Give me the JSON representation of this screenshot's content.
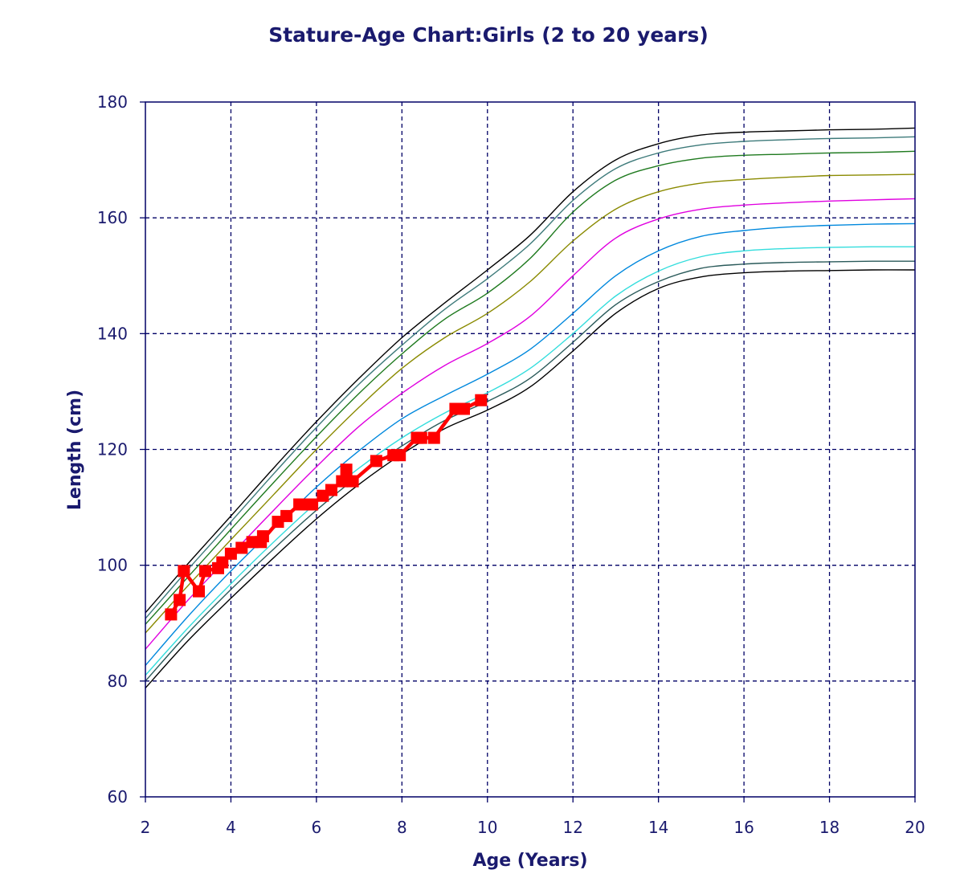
{
  "chart_data": {
    "type": "line",
    "title": "Stature-Age Chart:Girls (2 to 20 years)",
    "xlabel": "Age (Years)",
    "ylabel": "Length (cm)",
    "xlim": [
      2,
      20
    ],
    "ylim": [
      60,
      180
    ],
    "xticks": [
      "2",
      "4",
      "6",
      "8",
      "10",
      "12",
      "14",
      "16",
      "18",
      "20"
    ],
    "yticks": [
      "60",
      "80",
      "100",
      "120",
      "140",
      "160",
      "180"
    ],
    "grid": true,
    "x": [
      2,
      3,
      4,
      5,
      6,
      7,
      8,
      9,
      10,
      11,
      12,
      13,
      14,
      15,
      16,
      17,
      18,
      19,
      20
    ],
    "series": [
      {
        "color": "#000000",
        "values": [
          91.8,
          100.3,
          108.5,
          116.8,
          124.8,
          132.3,
          139.3,
          145.3,
          151.0,
          157.0,
          164.5,
          170.0,
          172.8,
          174.3,
          174.8,
          175.0,
          175.2,
          175.3,
          175.5
        ]
      },
      {
        "color": "#3d7a7a",
        "values": [
          90.8,
          99.3,
          107.5,
          115.8,
          123.8,
          131.3,
          138.0,
          144.2,
          149.5,
          155.5,
          163.0,
          168.5,
          171.2,
          172.6,
          173.2,
          173.5,
          173.7,
          173.8,
          174.0
        ]
      },
      {
        "color": "#1f7a1f",
        "values": [
          89.8,
          98.0,
          106.2,
          114.3,
          122.2,
          129.7,
          136.5,
          142.5,
          147.0,
          153.0,
          161.0,
          166.5,
          169.0,
          170.3,
          170.8,
          171.0,
          171.2,
          171.3,
          171.5
        ]
      },
      {
        "color": "#8a8a00",
        "values": [
          88.3,
          96.5,
          104.4,
          112.2,
          120.0,
          127.3,
          134.0,
          139.3,
          143.5,
          149.0,
          156.0,
          161.5,
          164.5,
          166.0,
          166.6,
          167.0,
          167.3,
          167.4,
          167.5
        ]
      },
      {
        "color": "#e000e0",
        "values": [
          85.5,
          94.0,
          101.8,
          109.5,
          117.0,
          124.0,
          129.7,
          134.5,
          138.3,
          143.0,
          150.0,
          156.5,
          159.8,
          161.5,
          162.2,
          162.6,
          162.9,
          163.1,
          163.3
        ]
      },
      {
        "color": "#0088dd",
        "values": [
          82.7,
          91.2,
          99.0,
          106.3,
          113.5,
          119.8,
          125.3,
          129.3,
          133.0,
          137.3,
          143.5,
          150.0,
          154.3,
          156.8,
          157.8,
          158.4,
          158.7,
          158.9,
          159.0
        ]
      },
      {
        "color": "#33dddd",
        "values": [
          81.0,
          89.2,
          96.8,
          104.0,
          110.8,
          116.8,
          122.0,
          126.3,
          129.8,
          134.0,
          140.0,
          146.5,
          150.8,
          153.3,
          154.3,
          154.7,
          154.9,
          155.0,
          155.0
        ]
      },
      {
        "color": "#2a5a5a",
        "values": [
          80.0,
          88.3,
          95.8,
          102.8,
          109.5,
          115.5,
          120.6,
          125.0,
          128.3,
          132.3,
          138.5,
          145.0,
          149.0,
          151.3,
          152.0,
          152.3,
          152.4,
          152.5,
          152.5
        ]
      },
      {
        "color": "#000000",
        "values": [
          78.8,
          87.0,
          94.3,
          101.3,
          108.0,
          114.0,
          119.2,
          123.6,
          126.8,
          130.8,
          137.0,
          143.5,
          147.8,
          149.8,
          150.5,
          150.8,
          150.9,
          151.0,
          151.0
        ]
      }
    ],
    "measurements": {
      "color": "#ff0000",
      "points": [
        [
          2.6,
          91.5
        ],
        [
          2.8,
          94
        ],
        [
          2.9,
          99
        ],
        [
          3.25,
          95.5
        ],
        [
          3.4,
          99
        ],
        [
          3.7,
          99.5
        ],
        [
          3.8,
          100.5
        ],
        [
          4.0,
          102
        ],
        [
          4.25,
          103
        ],
        [
          4.5,
          104
        ],
        [
          4.75,
          105
        ],
        [
          4.7,
          104
        ],
        [
          5.1,
          107.5
        ],
        [
          5.3,
          108.5
        ],
        [
          5.6,
          110.5
        ],
        [
          5.75,
          110.5
        ],
        [
          5.9,
          110.5
        ],
        [
          6.15,
          112
        ],
        [
          6.35,
          113
        ],
        [
          6.6,
          114.5
        ],
        [
          6.7,
          116.5
        ],
        [
          6.85,
          114.5
        ],
        [
          7.4,
          118
        ],
        [
          7.8,
          119
        ],
        [
          7.95,
          119
        ],
        [
          8.35,
          122
        ],
        [
          8.45,
          122
        ],
        [
          8.75,
          122
        ],
        [
          9.25,
          127
        ],
        [
          9.45,
          127
        ],
        [
          9.85,
          128.5
        ]
      ]
    }
  }
}
